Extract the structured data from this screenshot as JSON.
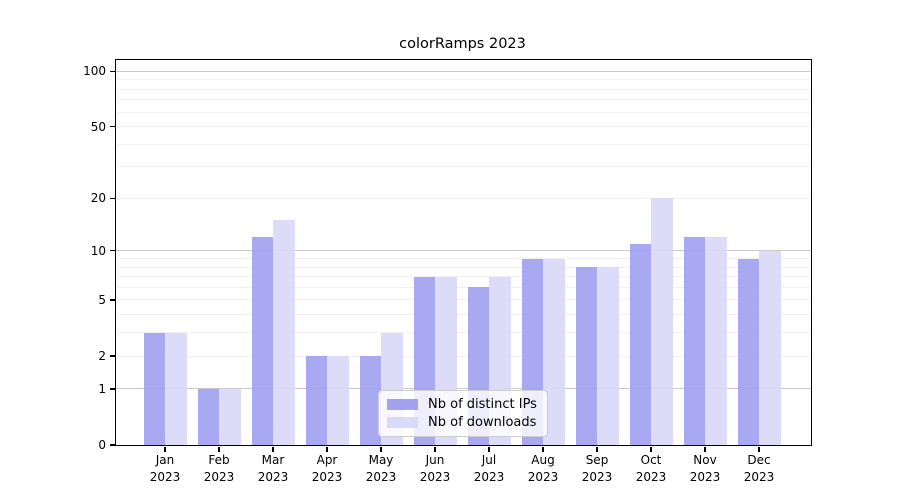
{
  "title": "colorRamps 2023",
  "chart_data": {
    "type": "bar",
    "title": "colorRamps 2023",
    "categories": [
      "Jan 2023",
      "Feb 2023",
      "Mar 2023",
      "Apr 2023",
      "May 2023",
      "Jun 2023",
      "Jul 2023",
      "Aug 2023",
      "Sep 2023",
      "Oct 2023",
      "Nov 2023",
      "Dec 2023"
    ],
    "series": [
      {
        "name": "Nb of distinct IPs",
        "color": "#a2a2f1",
        "values": [
          3,
          1,
          12,
          2,
          2,
          7,
          6,
          9,
          8,
          11,
          12,
          9
        ]
      },
      {
        "name": "Nb of downloads",
        "color": "#d9d9f9",
        "values": [
          3,
          1,
          15,
          2,
          3,
          7,
          7,
          9,
          8,
          20,
          12,
          10
        ]
      }
    ],
    "xlabel": "",
    "ylabel": "",
    "y_axis": {
      "scale": "log1p",
      "tick_values": [
        0,
        1,
        2,
        5,
        10,
        20,
        50,
        100
      ],
      "major_gridlines": [
        1,
        10,
        100
      ],
      "minor_gridlines": [
        2,
        3,
        4,
        5,
        6,
        7,
        8,
        9,
        20,
        30,
        40,
        50,
        60,
        70,
        80,
        90
      ],
      "ylim": [
        0,
        115
      ]
    },
    "grid": "horizontal",
    "legend_position": "bottom-center",
    "frame": true
  },
  "colors": {
    "bar_distinct_ips": "#a2a2f1",
    "bar_downloads": "#d9d9f9",
    "grid_minor": "#f0f0f0",
    "grid_major": "#c9c9c9",
    "frame": "#000000",
    "legend_border": "#cccccc"
  }
}
